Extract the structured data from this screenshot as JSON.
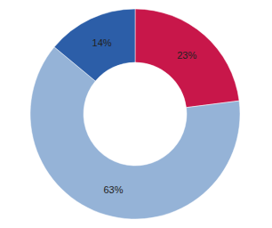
{
  "chart_data": {
    "type": "pie",
    "values": [
      23,
      63,
      14
    ],
    "value_labels": [
      "23%",
      "63%",
      "14%"
    ],
    "colors": [
      "#c8174a",
      "#95b3d7",
      "#2c5ea8"
    ],
    "data_labels": true
  }
}
